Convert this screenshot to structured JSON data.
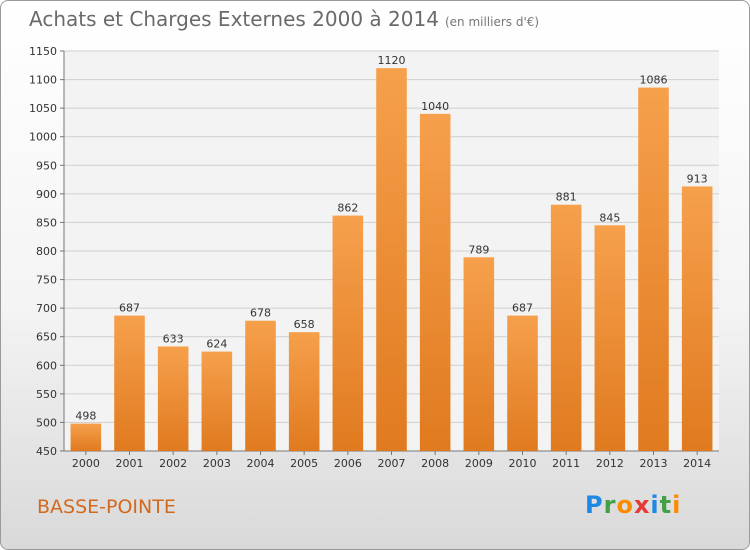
{
  "title": "Achats et Charges Externes 2000 à 2014",
  "subtitle": "(en milliers d'€)",
  "commune": "BASSE-POINTE",
  "logo": {
    "text": "Proxiti",
    "letters": [
      {
        "ch": "P",
        "color": "#1e88e5"
      },
      {
        "ch": "r",
        "color": "#43a047"
      },
      {
        "ch": "o",
        "color": "#fb8c00"
      },
      {
        "ch": "x",
        "color": "#e53935"
      },
      {
        "ch": "i",
        "color": "#1e88e5"
      },
      {
        "ch": "t",
        "color": "#43a047"
      },
      {
        "ch": "i",
        "color": "#fb8c00"
      }
    ]
  },
  "colors": {
    "bar_light": "#f6a04c",
    "bar_dark": "#e07a1f",
    "commune_text": "#d2691e",
    "grid": "#cfcfcf"
  },
  "chart_data": {
    "type": "bar",
    "title": "Achats et Charges Externes 2000 à 2014",
    "subtitle": "(en milliers d'€)",
    "categories": [
      "2000",
      "2001",
      "2002",
      "2003",
      "2004",
      "2005",
      "2006",
      "2007",
      "2008",
      "2009",
      "2010",
      "2011",
      "2012",
      "2013",
      "2014"
    ],
    "values": [
      498,
      687,
      633,
      624,
      678,
      658,
      862,
      1120,
      1040,
      789,
      687,
      881,
      845,
      1086,
      913
    ],
    "value_labels": [
      "498",
      "687",
      "633",
      "624",
      "678",
      "658",
      "862",
      "1120",
      "1040",
      "789",
      "687",
      "881",
      "845",
      "1086",
      "913"
    ],
    "xlabel": "",
    "ylabel": "",
    "ylim": [
      450,
      1150
    ],
    "yticks": [
      450,
      500,
      550,
      600,
      650,
      700,
      750,
      800,
      850,
      900,
      950,
      1000,
      1050,
      1100,
      1150
    ],
    "grid": true,
    "legend": "none"
  }
}
